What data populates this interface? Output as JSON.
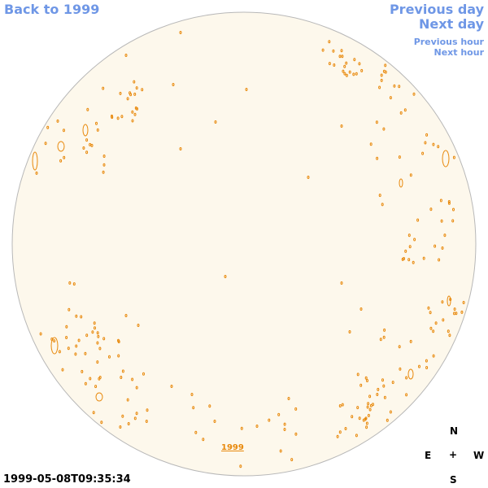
{
  "nav": {
    "back": "Back to 1999",
    "previous_day": "Previous day",
    "next_day": "Next day",
    "previous_hour": "Previous hour",
    "next_hour": "Next hour"
  },
  "disk": {
    "fill": "#fdf8ec",
    "outline": "#b8b8b8",
    "contour_color": "#e8890c"
  },
  "year_link": "1999",
  "compass": {
    "n": "N",
    "e": "E",
    "center": "+",
    "w": "W",
    "s": "S"
  },
  "timestamp": "1999-05-08T09:35:34",
  "colors": {
    "nav": "#6f97e6",
    "accent": "#e8890c"
  }
}
